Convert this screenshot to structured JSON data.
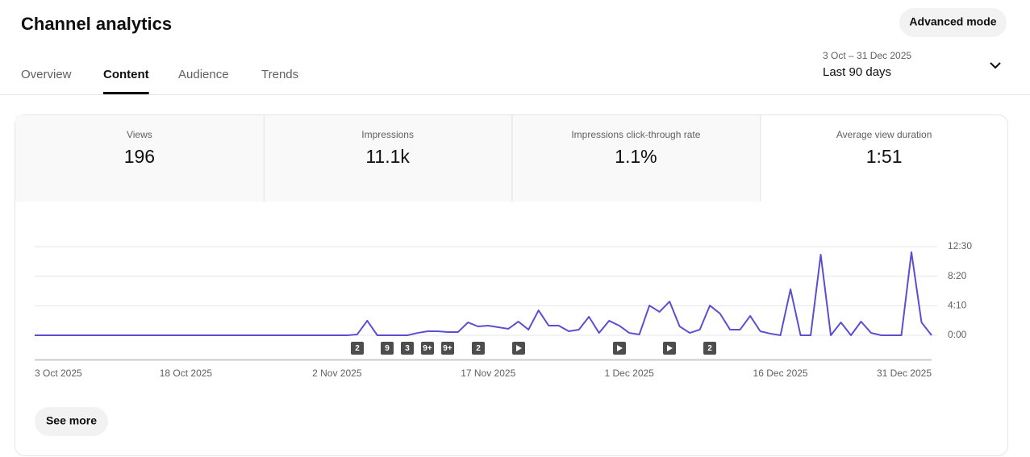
{
  "header": {
    "title": "Channel analytics",
    "button": "Advanced mode"
  },
  "tabs": {
    "items": [
      "Overview",
      "Content",
      "Audience",
      "Trends"
    ],
    "active": 1
  },
  "date_range": {
    "range": "3 Oct – 31 Dec 2025",
    "label": "Last 90 days"
  },
  "metrics": {
    "items": [
      {
        "label": "Views",
        "value": "196"
      },
      {
        "label": "Impressions",
        "value": "11.1k"
      },
      {
        "label": "Impressions click-through rate",
        "value": "1.1%"
      },
      {
        "label": "Average view duration",
        "value": "1:51"
      }
    ],
    "active": 3
  },
  "chart_data": {
    "type": "line",
    "color": "#5b4fd1",
    "categories": [
      "3 Oct 2025",
      null,
      null,
      null,
      null,
      null,
      null,
      null,
      null,
      null,
      null,
      null,
      null,
      null,
      null,
      "18 Oct 2025",
      null,
      null,
      null,
      null,
      null,
      null,
      null,
      null,
      null,
      null,
      null,
      null,
      null,
      null,
      "2 Nov 2025",
      null,
      null,
      null,
      null,
      null,
      null,
      null,
      null,
      null,
      null,
      null,
      null,
      null,
      null,
      "17 Nov 2025",
      null,
      null,
      null,
      null,
      null,
      null,
      null,
      null,
      null,
      null,
      null,
      null,
      null,
      "1 Dec 2025",
      null,
      null,
      null,
      null,
      null,
      null,
      null,
      null,
      null,
      null,
      null,
      null,
      null,
      null,
      "16 Dec 2025",
      null,
      null,
      null,
      null,
      null,
      null,
      null,
      null,
      null,
      null,
      null,
      null,
      null,
      null,
      "31 Dec 2025"
    ],
    "values": [
      0,
      0,
      0,
      0,
      0,
      0,
      0,
      0,
      0,
      0,
      0,
      0,
      0,
      0,
      0,
      0,
      0,
      0,
      0,
      0,
      0,
      0,
      0,
      0,
      0,
      0,
      0,
      0,
      0,
      0,
      0,
      0,
      7,
      123,
      0,
      0,
      0,
      0,
      20,
      34,
      34,
      27,
      27,
      109,
      75,
      82,
      68,
      55,
      116,
      48,
      211,
      82,
      82,
      34,
      48,
      157,
      20,
      123,
      82,
      20,
      7,
      252,
      198,
      286,
      75,
      20,
      48,
      252,
      184,
      48,
      48,
      164,
      34,
      14,
      0,
      389,
      0,
      0,
      682,
      0,
      109,
      0,
      116,
      20,
      0,
      0,
      0,
      703,
      109,
      0
    ],
    "ylim": [
      0,
      750
    ],
    "yticks": [
      {
        "value": 0,
        "label": "0:00"
      },
      {
        "value": 250,
        "label": "4:10"
      },
      {
        "value": 500,
        "label": "8:20"
      },
      {
        "value": 750,
        "label": "12:30"
      }
    ],
    "grid": true,
    "annotations": [
      "2",
      "9",
      "3",
      "9+",
      "9+",
      "2",
      "2"
    ]
  },
  "see_more": "See more"
}
